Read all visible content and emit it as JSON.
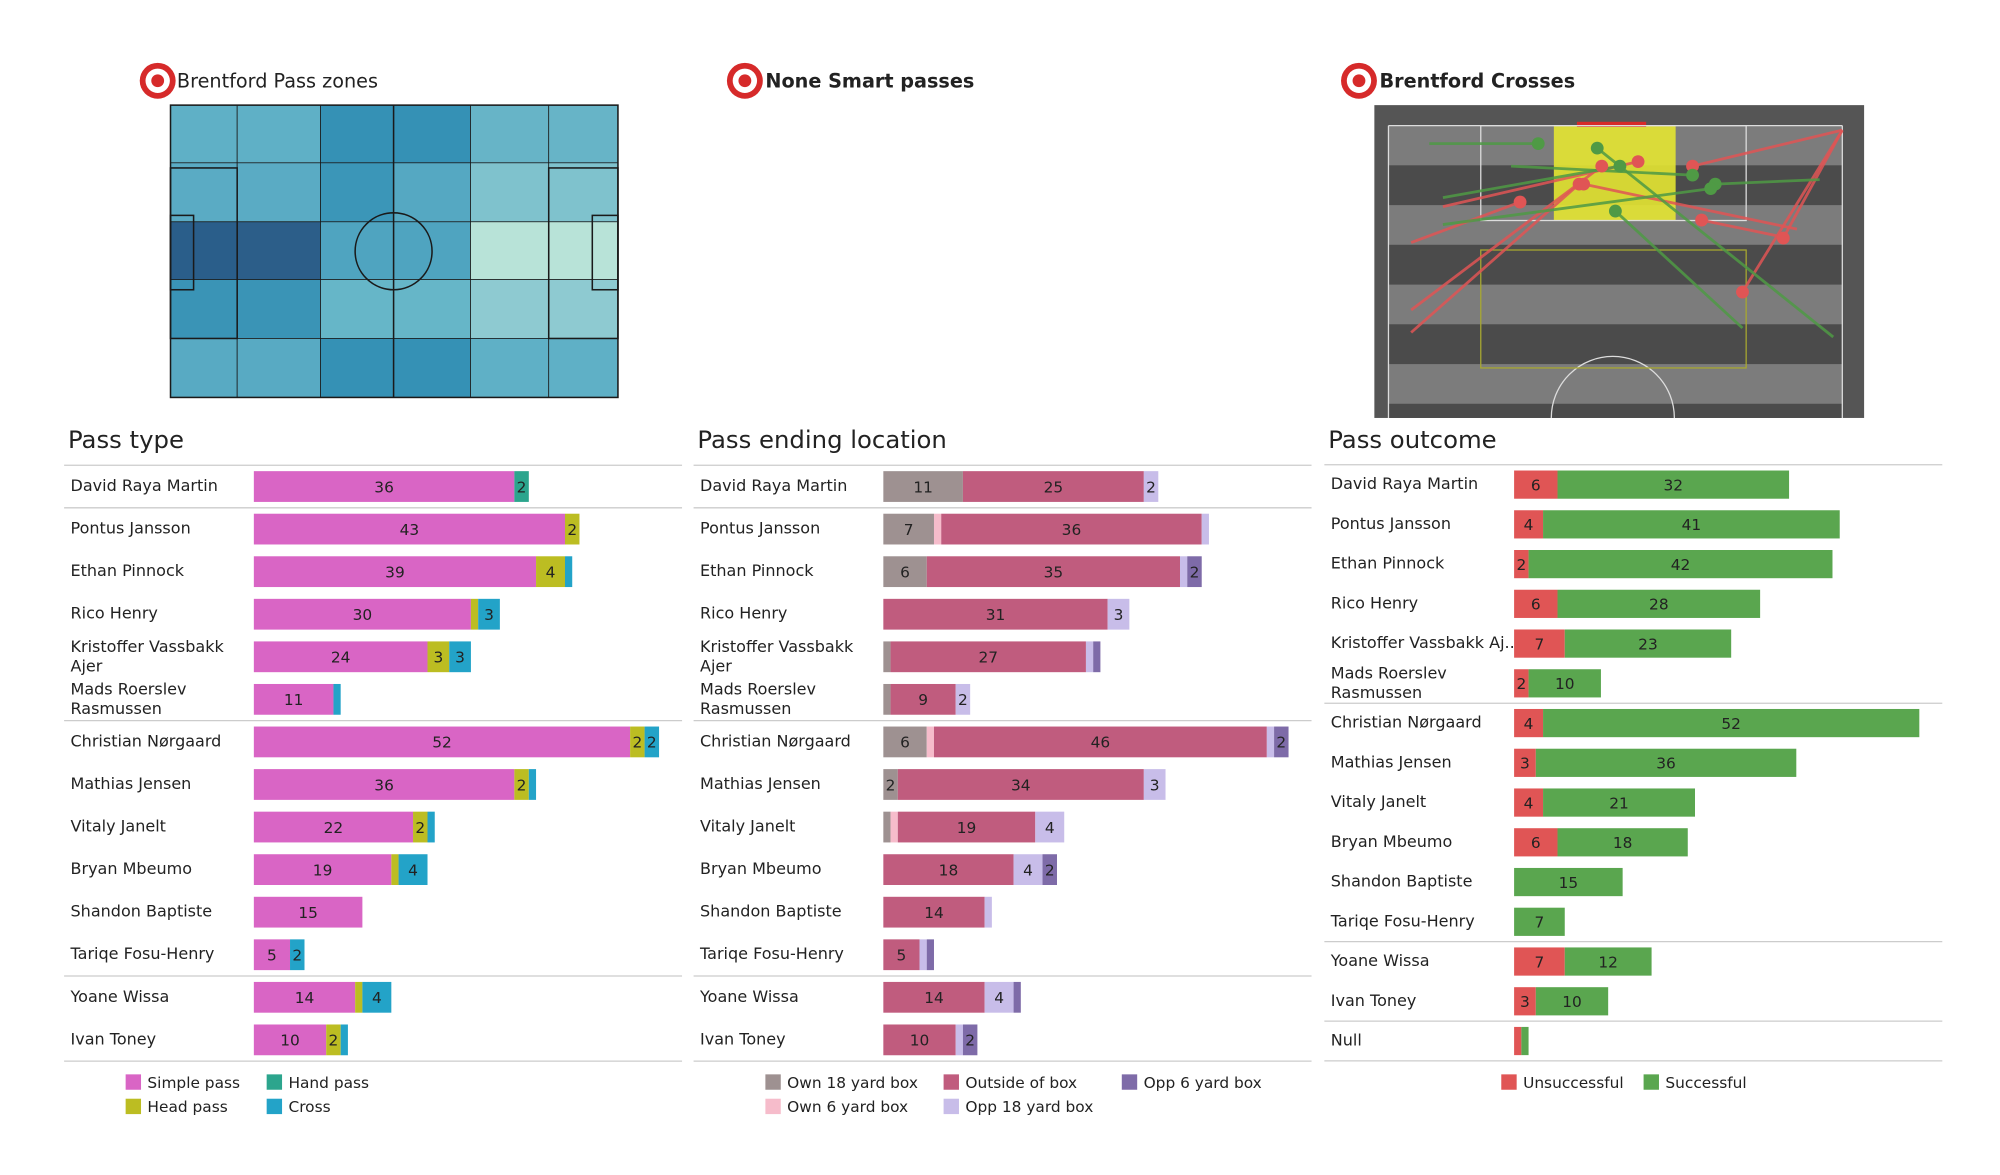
{
  "chart_data": [
    {
      "type": "heatmap",
      "title": "Brentford Pass zones",
      "zones": [
        [
          "#5fb0c6",
          "#5fb0c6",
          "#3591b5",
          "#3591b5",
          "#67b4c7",
          "#67b4c7"
        ],
        [
          "#5aabc4",
          "#5aabc4",
          "#3b96b8",
          "#55a8c2",
          "#7fc2cd",
          "#7fc2cd"
        ],
        [
          "#2a5e8a",
          "#2c5e89",
          "#4fa4c0",
          "#4fa4c0",
          "#b8e3d8",
          "#b8e3d8"
        ],
        [
          "#3a94b6",
          "#3a94b6",
          "#66b6c8",
          "#66b6c8",
          "#8ecad1",
          "#8ecad1"
        ],
        [
          "#58aac3",
          "#58aac3",
          "#3591b5",
          "#3591b5",
          "#5fb0c6",
          "#5fb0c6"
        ]
      ]
    },
    {
      "type": "blank",
      "title": "None Smart passes"
    },
    {
      "type": "crosses",
      "title": "Brentford Crosses",
      "xlim": [
        0,
        100
      ],
      "ylim": [
        0,
        65
      ],
      "crosses": [
        {
          "start": [
            100,
            1
          ],
          "end": [
            78,
            37
          ],
          "color": "#e05555"
        },
        {
          "start": [
            100,
            1
          ],
          "end": [
            87,
            25
          ],
          "color": "#e05555"
        },
        {
          "start": [
            100,
            1
          ],
          "end": [
            67,
            9
          ],
          "color": "#e05555"
        },
        {
          "start": [
            5,
            41
          ],
          "end": [
            47,
            9
          ],
          "color": "#e05555"
        },
        {
          "start": [
            5,
            46
          ],
          "end": [
            42,
            13
          ],
          "color": "#e05555"
        },
        {
          "start": [
            5,
            26
          ],
          "end": [
            29,
            17
          ],
          "color": "#e05555"
        },
        {
          "start": [
            90,
            23
          ],
          "end": [
            43,
            13
          ],
          "color": "#e05555"
        },
        {
          "start": [
            88,
            25
          ],
          "end": [
            69,
            21
          ],
          "color": "#e05555"
        },
        {
          "start": [
            12,
            18
          ],
          "end": [
            55,
            8
          ],
          "color": "#e05555"
        },
        {
          "start": [
            9,
            4
          ],
          "end": [
            33,
            4
          ],
          "color": "#4f9a45"
        },
        {
          "start": [
            12,
            16
          ],
          "end": [
            51,
            9
          ],
          "color": "#4f9a45"
        },
        {
          "start": [
            98,
            47
          ],
          "end": [
            46,
            5
          ],
          "color": "#4f9a45"
        },
        {
          "start": [
            78,
            45
          ],
          "end": [
            50,
            19
          ],
          "color": "#4f9a45"
        },
        {
          "start": [
            95,
            12
          ],
          "end": [
            72,
            13
          ],
          "color": "#4f9a45"
        },
        {
          "start": [
            27,
            9
          ],
          "end": [
            67,
            11
          ],
          "color": "#4f9a45"
        },
        {
          "start": [
            12,
            22
          ],
          "end": [
            71,
            14
          ],
          "color": "#4f9a45"
        }
      ]
    },
    {
      "type": "stacked-barh",
      "title": "Pass type",
      "xlim": [
        0,
        59
      ],
      "categories": [
        "David Raya Martin",
        "Pontus Jansson",
        "Ethan Pinnock",
        "Rico Henry",
        "Kristoffer Vassbakk Ajer",
        "Mads Roerslev Rasmussen",
        "Christian Nørgaard",
        "Mathias Jensen",
        "Vitaly Janelt",
        "Bryan Mbeumo",
        "Shandon Baptiste",
        "Tariqe Fosu-Henry",
        "Yoane Wissa",
        "Ivan Toney"
      ],
      "series": [
        {
          "name": "Simple pass",
          "color": "#d965c5",
          "values": [
            36,
            43,
            39,
            30,
            24,
            11,
            52,
            36,
            22,
            19,
            15,
            5,
            14,
            10
          ]
        },
        {
          "name": "Head pass",
          "color": "#bcbd22",
          "values": [
            0,
            2,
            4,
            1,
            3,
            0,
            2,
            2,
            2,
            1,
            0,
            0,
            1,
            2
          ]
        },
        {
          "name": "Hand pass",
          "color": "#2ca58d",
          "values": [
            2,
            0,
            0,
            0,
            0,
            0,
            0,
            0,
            0,
            0,
            0,
            0,
            0,
            0
          ]
        },
        {
          "name": "Cross",
          "color": "#23a3c8",
          "values": [
            0,
            0,
            1,
            3,
            3,
            1,
            2,
            1,
            1,
            4,
            0,
            2,
            4,
            1
          ]
        }
      ]
    },
    {
      "type": "stacked-barh",
      "title": "Pass ending location",
      "xlim": [
        0,
        59
      ],
      "categories": [
        "David Raya Martin",
        "Pontus Jansson",
        "Ethan Pinnock",
        "Rico Henry",
        "Kristoffer Vassbakk Ajer",
        "Mads Roerslev Rasmussen",
        "Christian Nørgaard",
        "Mathias Jensen",
        "Vitaly Janelt",
        "Bryan Mbeumo",
        "Shandon Baptiste",
        "Tariqe Fosu-Henry",
        "Yoane Wissa",
        "Ivan Toney"
      ],
      "series": [
        {
          "name": "Own 18 yard box",
          "color": "#9e9191",
          "values": [
            11,
            7,
            6,
            0,
            1,
            1,
            6,
            2,
            1,
            0,
            0,
            0,
            0,
            0
          ]
        },
        {
          "name": "Own 6 yard box",
          "color": "#f6bccb",
          "values": [
            0,
            1,
            0,
            0,
            0,
            0,
            1,
            0,
            1,
            0,
            0,
            0,
            0,
            0
          ]
        },
        {
          "name": "Outside of box",
          "color": "#c05c7e",
          "values": [
            25,
            36,
            35,
            31,
            27,
            9,
            46,
            34,
            19,
            18,
            14,
            5,
            14,
            10
          ]
        },
        {
          "name": "Opp 18 yard box",
          "color": "#c8bde9",
          "values": [
            2,
            1,
            1,
            3,
            1,
            2,
            1,
            3,
            4,
            4,
            1,
            1,
            4,
            1
          ]
        },
        {
          "name": "Opp 6 yard box",
          "color": "#7e6ba8",
          "values": [
            0,
            0,
            2,
            0,
            1,
            0,
            2,
            0,
            0,
            2,
            0,
            1,
            1,
            2
          ]
        }
      ]
    },
    {
      "type": "stacked-barh",
      "title": "Pass outcome",
      "xlim": [
        0,
        59
      ],
      "categories": [
        "David Raya Martin",
        "Pontus Jansson",
        "Ethan Pinnock",
        "Rico Henry",
        "Kristoffer Vassbakk Aj..",
        "Mads Roerslev Rasmussen",
        "Christian Nørgaard",
        "Mathias Jensen",
        "Vitaly Janelt",
        "Bryan Mbeumo",
        "Shandon Baptiste",
        "Tariqe Fosu-Henry",
        "Yoane Wissa",
        "Ivan Toney",
        "Null"
      ],
      "series": [
        {
          "name": "Unsuccessful",
          "color": "#e05555",
          "values": [
            6,
            4,
            2,
            6,
            7,
            2,
            4,
            3,
            4,
            6,
            0,
            0,
            7,
            3,
            1
          ]
        },
        {
          "name": "Successful",
          "color": "#5aa64f",
          "values": [
            32,
            41,
            42,
            28,
            23,
            10,
            52,
            36,
            21,
            18,
            15,
            7,
            12,
            10,
            1
          ]
        }
      ]
    }
  ]
}
